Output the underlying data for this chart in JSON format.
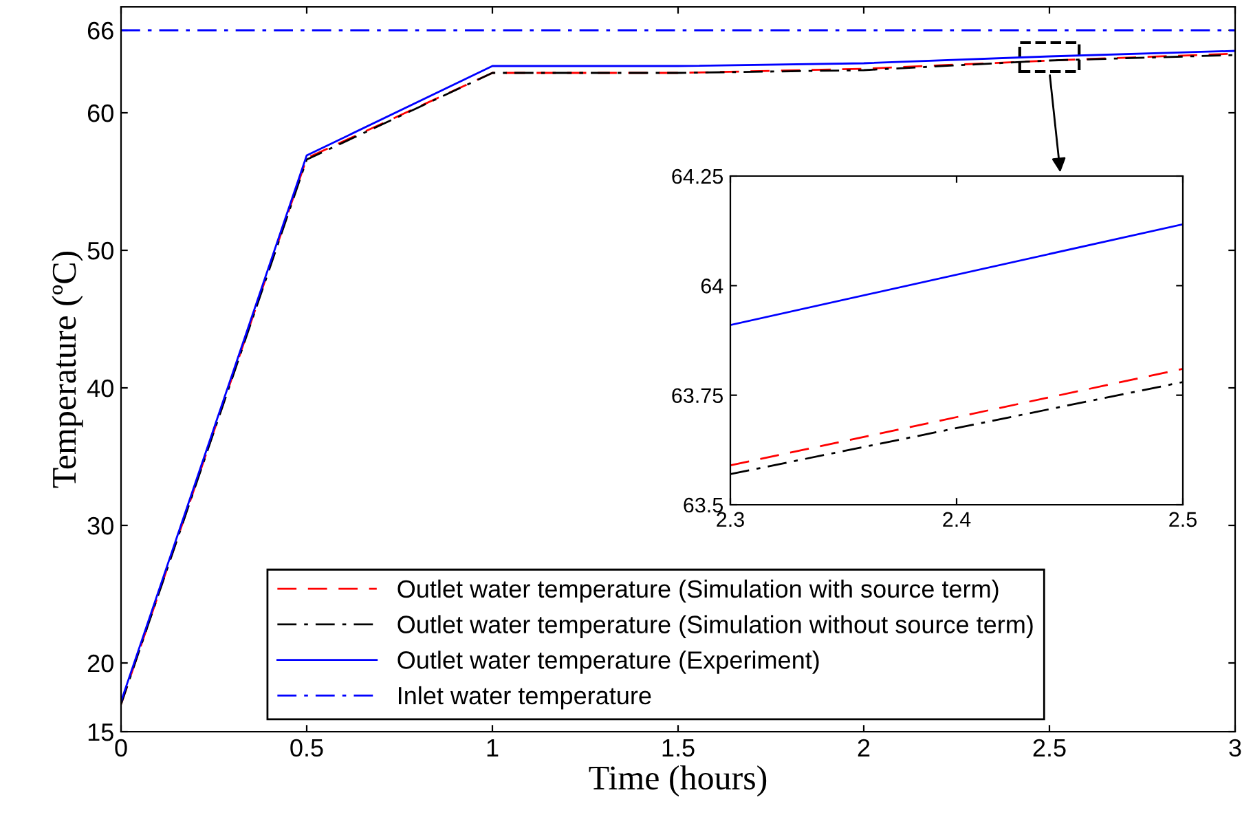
{
  "chart_data": [
    {
      "type": "line",
      "xlabel": "Time (hours)",
      "ylabel": "Temperature (ºC)",
      "x": [
        0,
        0.5,
        1,
        1.5,
        2,
        2.5,
        3
      ],
      "series": [
        {
          "name": "Outlet water temperature (Simulation with source term)",
          "color": "#ff0000",
          "line_style": "dashed",
          "values": [
            17.0,
            56.7,
            62.9,
            62.9,
            63.2,
            63.8,
            64.3
          ]
        },
        {
          "name": "Outlet water temperature (Simulation without source term)",
          "color": "#000000",
          "line_style": "dashdot",
          "values": [
            17.0,
            56.6,
            62.9,
            62.9,
            63.1,
            63.8,
            64.2
          ]
        },
        {
          "name": "Outlet water temperature (Experiment)",
          "color": "#0000ff",
          "line_style": "solid",
          "values": [
            17.2,
            56.9,
            63.4,
            63.4,
            63.6,
            64.1,
            64.5
          ]
        }
      ],
      "ref_lines": [
        {
          "axis": "y",
          "value": 66,
          "label": "Inlet water temperature",
          "color": "#0000ff",
          "line_style": "dashdot"
        }
      ],
      "xlim": [
        0,
        3
      ],
      "ylim": [
        15,
        67.7
      ],
      "xticks": [
        0,
        0.5,
        1,
        1.5,
        2,
        2.5,
        3
      ],
      "yticks": [
        15,
        20,
        30,
        40,
        50,
        60,
        66
      ],
      "grid": false,
      "legend": "bottom"
    },
    {
      "type": "line",
      "x": [
        2.3,
        2.5
      ],
      "series": [
        {
          "color": "#ff0000",
          "line_style": "dashed",
          "values": [
            63.59,
            63.81
          ]
        },
        {
          "color": "#000000",
          "line_style": "dashdot",
          "values": [
            63.57,
            63.78
          ]
        },
        {
          "color": "#0000ff",
          "line_style": "solid",
          "values": [
            63.91,
            64.14
          ]
        }
      ],
      "xlim": [
        2.3,
        2.5
      ],
      "ylim": [
        63.5,
        64.25
      ],
      "xticks": [
        2.3,
        2.4,
        2.5
      ],
      "yticks": [
        63.5,
        63.75,
        64,
        64.25
      ],
      "grid": false
    }
  ]
}
